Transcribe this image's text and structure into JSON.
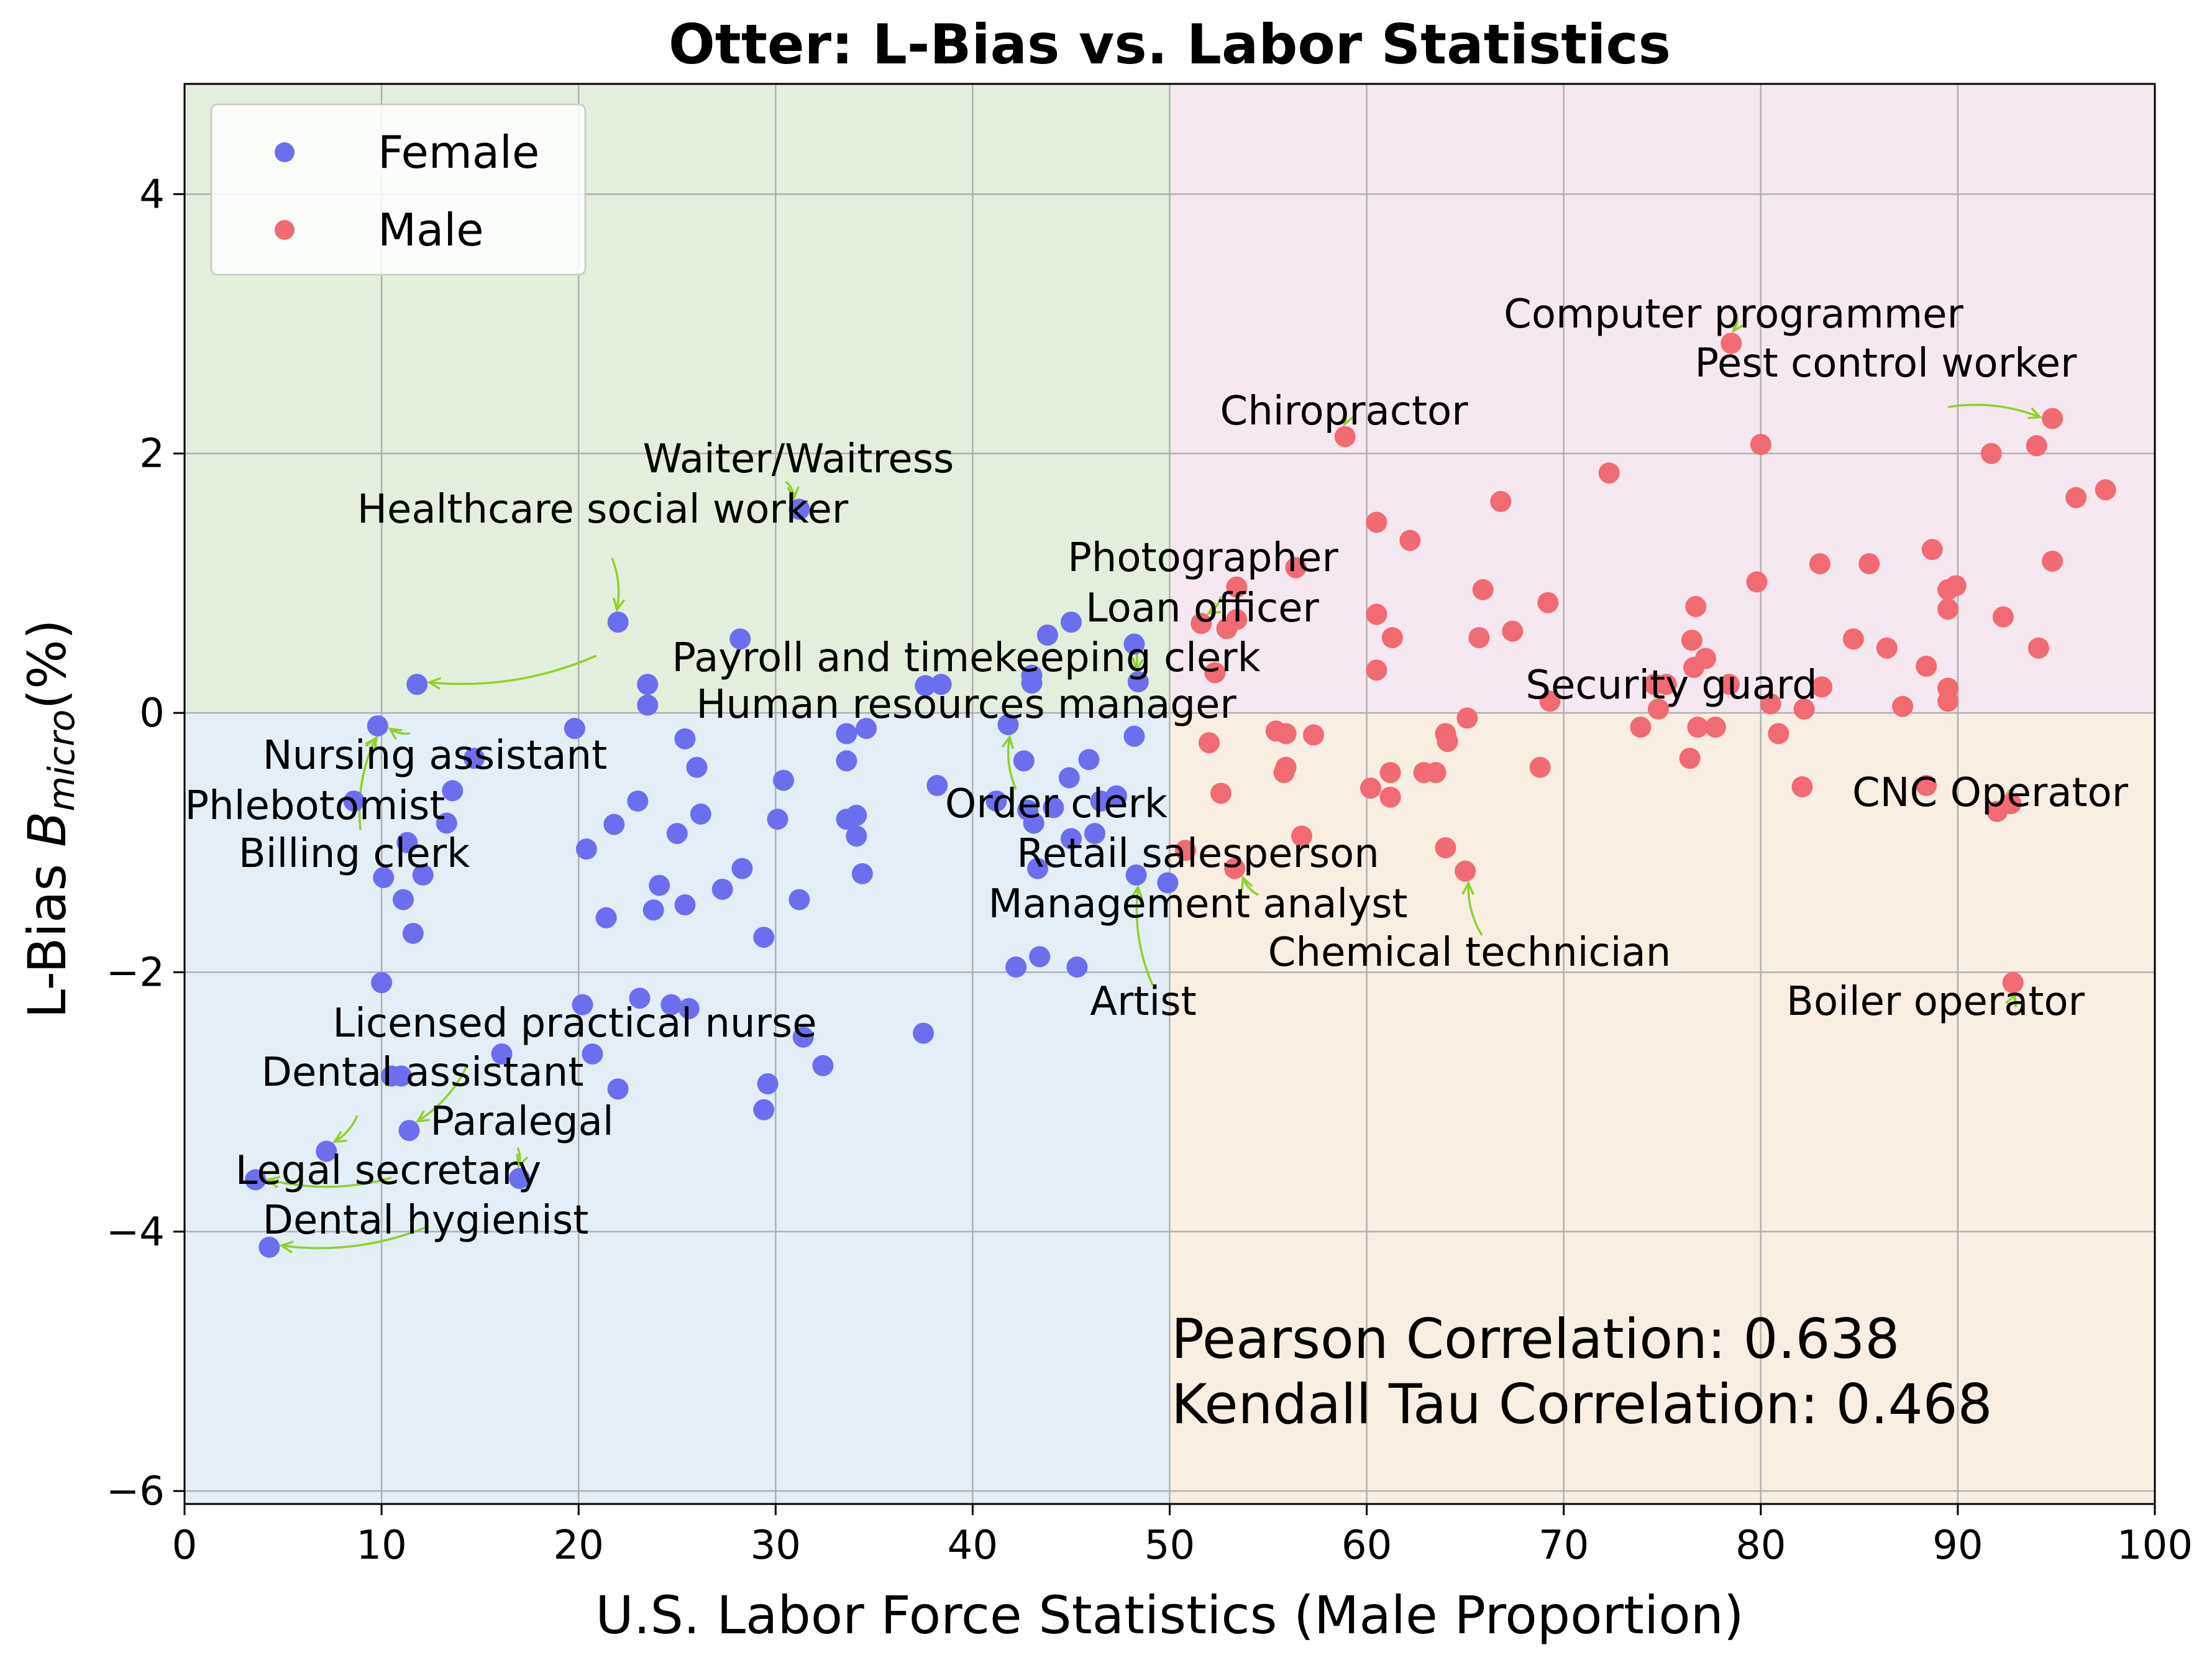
{
  "chart_data": {
    "type": "scatter",
    "title": "Otter: L-Bias vs. Labor Statistics",
    "xlabel": "U.S. Labor Force Statistics (Male Proportion)",
    "ylabel_prefix": "L-Bias  ",
    "ylabel_symbol": "B",
    "ylabel_subscript": "micro",
    "ylabel_suffix": "(%)",
    "xlim": [
      0,
      100
    ],
    "ylim": [
      -6.1,
      4.85
    ],
    "xticks": [
      0,
      10,
      20,
      30,
      40,
      50,
      60,
      70,
      80,
      90,
      100
    ],
    "yticks": [
      -6,
      -4,
      -2,
      0,
      2,
      4
    ],
    "grid": true,
    "legend_position": "top-left",
    "quadrant_colors": {
      "top_left": "#e3eedc",
      "top_right": "#f6e8f0",
      "bottom_left": "#e3eef7",
      "bottom_right": "#f8eee2"
    },
    "series": [
      {
        "name": "Female",
        "color": "#6b6fef",
        "points": [
          [
            22.0,
            0.7
          ],
          [
            28.2,
            0.57
          ],
          [
            31.2,
            1.57
          ],
          [
            11.8,
            0.22
          ],
          [
            23.5,
            0.22
          ],
          [
            23.5,
            0.06
          ],
          [
            37.6,
            0.21
          ],
          [
            38.4,
            0.22
          ],
          [
            43.0,
            0.29
          ],
          [
            43.0,
            0.23
          ],
          [
            43.8,
            0.6
          ],
          [
            45.0,
            0.7
          ],
          [
            48.2,
            0.53
          ],
          [
            48.4,
            0.24
          ],
          [
            48.2,
            -0.18
          ],
          [
            9.8,
            -0.1
          ],
          [
            19.8,
            -0.12
          ],
          [
            25.4,
            -0.2
          ],
          [
            33.6,
            -0.16
          ],
          [
            34.6,
            -0.12
          ],
          [
            41.8,
            -0.09
          ],
          [
            42.6,
            -0.37
          ],
          [
            8.6,
            -0.68
          ],
          [
            11.3,
            -1.0
          ],
          [
            13.3,
            -0.85
          ],
          [
            13.6,
            -0.6
          ],
          [
            14.7,
            -0.35
          ],
          [
            21.8,
            -0.86
          ],
          [
            23.0,
            -0.68
          ],
          [
            25.0,
            -0.93
          ],
          [
            26.0,
            -0.42
          ],
          [
            26.2,
            -0.78
          ],
          [
            30.4,
            -0.52
          ],
          [
            30.1,
            -0.82
          ],
          [
            33.6,
            -0.37
          ],
          [
            33.6,
            -0.82
          ],
          [
            34.1,
            -0.79
          ],
          [
            34.1,
            -0.95
          ],
          [
            34.4,
            -1.24
          ],
          [
            38.2,
            -0.56
          ],
          [
            41.2,
            -0.68
          ],
          [
            42.8,
            -0.75
          ],
          [
            43.1,
            -0.85
          ],
          [
            43.3,
            -1.2
          ],
          [
            44.1,
            -0.73
          ],
          [
            44.9,
            -0.5
          ],
          [
            45.0,
            -0.97
          ],
          [
            45.9,
            -0.36
          ],
          [
            46.2,
            -0.93
          ],
          [
            46.5,
            -0.68
          ],
          [
            47.3,
            -0.64
          ],
          [
            10.1,
            -1.27
          ],
          [
            11.1,
            -1.44
          ],
          [
            11.6,
            -1.7
          ],
          [
            12.1,
            -1.25
          ],
          [
            20.4,
            -1.05
          ],
          [
            21.4,
            -1.58
          ],
          [
            23.8,
            -1.52
          ],
          [
            24.1,
            -1.33
          ],
          [
            25.4,
            -1.48
          ],
          [
            27.3,
            -1.36
          ],
          [
            28.3,
            -1.2
          ],
          [
            29.4,
            -1.73
          ],
          [
            31.2,
            -1.44
          ],
          [
            10.0,
            -2.08
          ],
          [
            20.2,
            -2.25
          ],
          [
            23.1,
            -2.2
          ],
          [
            24.7,
            -2.25
          ],
          [
            25.6,
            -2.28
          ],
          [
            29.6,
            -2.86
          ],
          [
            29.4,
            -3.06
          ],
          [
            32.4,
            -2.72
          ],
          [
            31.4,
            -2.5
          ],
          [
            37.5,
            -2.47
          ],
          [
            42.2,
            -1.96
          ],
          [
            43.4,
            -1.88
          ],
          [
            45.3,
            -1.96
          ],
          [
            10.5,
            -2.8
          ],
          [
            11.0,
            -2.8
          ],
          [
            11.4,
            -3.22
          ],
          [
            16.1,
            -2.63
          ],
          [
            20.7,
            -2.63
          ],
          [
            22.0,
            -2.9
          ],
          [
            17.0,
            -3.59
          ],
          [
            7.2,
            -3.38
          ],
          [
            3.6,
            -3.6
          ],
          [
            4.3,
            -4.12
          ],
          [
            48.3,
            -1.25
          ],
          [
            49.9,
            -1.31
          ]
        ]
      },
      {
        "name": "Male",
        "color": "#f26a72",
        "points": [
          [
            78.5,
            2.85
          ],
          [
            94.8,
            2.27
          ],
          [
            58.9,
            2.13
          ],
          [
            80.0,
            2.07
          ],
          [
            72.3,
            1.85
          ],
          [
            91.7,
            2.0
          ],
          [
            94.0,
            2.06
          ],
          [
            96.0,
            1.66
          ],
          [
            97.5,
            1.72
          ],
          [
            66.8,
            1.63
          ],
          [
            60.5,
            1.47
          ],
          [
            62.2,
            1.33
          ],
          [
            56.4,
            1.12
          ],
          [
            53.4,
            0.97
          ],
          [
            53.4,
            0.72
          ],
          [
            51.6,
            0.69
          ],
          [
            52.9,
            0.65
          ],
          [
            52.3,
            0.31
          ],
          [
            60.5,
            0.76
          ],
          [
            61.3,
            0.58
          ],
          [
            65.9,
            0.95
          ],
          [
            67.4,
            0.63
          ],
          [
            69.2,
            0.85
          ],
          [
            65.7,
            0.58
          ],
          [
            60.5,
            0.33
          ],
          [
            76.7,
            0.82
          ],
          [
            76.5,
            0.56
          ],
          [
            76.6,
            0.35
          ],
          [
            77.2,
            0.42
          ],
          [
            79.8,
            1.01
          ],
          [
            83.0,
            1.15
          ],
          [
            85.5,
            1.15
          ],
          [
            88.7,
            1.26
          ],
          [
            89.5,
            0.95
          ],
          [
            89.9,
            0.98
          ],
          [
            89.5,
            0.8
          ],
          [
            92.3,
            0.74
          ],
          [
            94.8,
            1.17
          ],
          [
            94.1,
            0.5
          ],
          [
            84.7,
            0.57
          ],
          [
            86.4,
            0.5
          ],
          [
            88.4,
            0.36
          ],
          [
            89.5,
            0.19
          ],
          [
            89.5,
            0.09
          ],
          [
            87.2,
            0.05
          ],
          [
            83.1,
            0.2
          ],
          [
            82.2,
            0.03
          ],
          [
            80.5,
            0.07
          ],
          [
            78.4,
            0.22
          ],
          [
            75.2,
            0.22
          ],
          [
            74.6,
            0.22
          ],
          [
            74.8,
            0.03
          ],
          [
            69.3,
            0.09
          ],
          [
            73.9,
            -0.11
          ],
          [
            76.8,
            -0.11
          ],
          [
            77.7,
            -0.11
          ],
          [
            80.9,
            -0.16
          ],
          [
            55.4,
            -0.14
          ],
          [
            55.9,
            -0.16
          ],
          [
            57.3,
            -0.17
          ],
          [
            52.0,
            -0.23
          ],
          [
            64.0,
            -0.16
          ],
          [
            64.1,
            -0.22
          ],
          [
            65.1,
            -0.04
          ],
          [
            76.4,
            -0.35
          ],
          [
            55.9,
            -0.42
          ],
          [
            55.8,
            -0.46
          ],
          [
            61.2,
            -0.46
          ],
          [
            62.9,
            -0.46
          ],
          [
            63.5,
            -0.46
          ],
          [
            60.2,
            -0.58
          ],
          [
            61.2,
            -0.65
          ],
          [
            52.6,
            -0.62
          ],
          [
            68.8,
            -0.42
          ],
          [
            56.7,
            -0.95
          ],
          [
            82.1,
            -0.57
          ],
          [
            88.4,
            -0.56
          ],
          [
            92.0,
            -0.76
          ],
          [
            92.7,
            -0.7
          ],
          [
            64.0,
            -1.04
          ],
          [
            65.0,
            -1.22
          ],
          [
            50.8,
            -1.06
          ],
          [
            53.3,
            -1.2
          ],
          [
            92.8,
            -2.08
          ]
        ]
      }
    ],
    "annotations": [
      {
        "text": "Computer programmer",
        "point": [
          78.5,
          2.85
        ]
      },
      {
        "text": "Pest control worker",
        "point": [
          94.8,
          2.27
        ]
      },
      {
        "text": "Chiropractor",
        "point": [
          58.9,
          2.13
        ]
      },
      {
        "text": "Waiter/Waitress",
        "point": [
          31.2,
          1.57
        ]
      },
      {
        "text": "Healthcare social worker",
        "point": [
          22.0,
          0.7
        ]
      },
      {
        "text": "Photographer",
        "point": [
          51.6,
          0.69
        ]
      },
      {
        "text": "Loan officer",
        "point": [
          48.4,
          0.24
        ]
      },
      {
        "text": "Payroll and timekeeping clerk",
        "point": [
          11.8,
          0.22
        ]
      },
      {
        "text": "Security guard",
        "point": [
          74.8,
          0.03
        ]
      },
      {
        "text": "Human resources manager",
        "point": [
          9.8,
          -0.1
        ]
      },
      {
        "text": "Nursing assistant",
        "point": [
          9.8,
          -0.1
        ]
      },
      {
        "text": "Phlebotomist",
        "point": [
          9.8,
          -0.1
        ]
      },
      {
        "text": "Order clerk",
        "point": [
          41.8,
          -0.09
        ]
      },
      {
        "text": "CNC Operator",
        "point": [
          92.0,
          -0.76
        ]
      },
      {
        "text": "Billing clerk",
        "point": [
          9.8,
          -0.1
        ]
      },
      {
        "text": "Retail salesperson",
        "point": [
          53.3,
          -1.2
        ]
      },
      {
        "text": "Management analyst",
        "point": [
          53.3,
          -1.2
        ]
      },
      {
        "text": "Chemical technician",
        "point": [
          65.0,
          -1.22
        ]
      },
      {
        "text": "Artist",
        "point": [
          48.3,
          -1.25
        ]
      },
      {
        "text": "Boiler operator",
        "point": [
          92.8,
          -2.08
        ]
      },
      {
        "text": "Licensed practical nurse",
        "point": [
          11.4,
          -3.22
        ]
      },
      {
        "text": "Dental assistant",
        "point": [
          7.2,
          -3.38
        ]
      },
      {
        "text": "Paralegal",
        "point": [
          17.0,
          -3.59
        ]
      },
      {
        "text": "Legal secretary",
        "point": [
          3.6,
          -3.6
        ]
      },
      {
        "text": "Dental hygienist",
        "point": [
          4.3,
          -4.12
        ]
      }
    ],
    "stats": [
      "Pearson Correlation: 0.638",
      "Kendall Tau Correlation: 0.468"
    ],
    "arrow_color": "#8fd12a"
  }
}
